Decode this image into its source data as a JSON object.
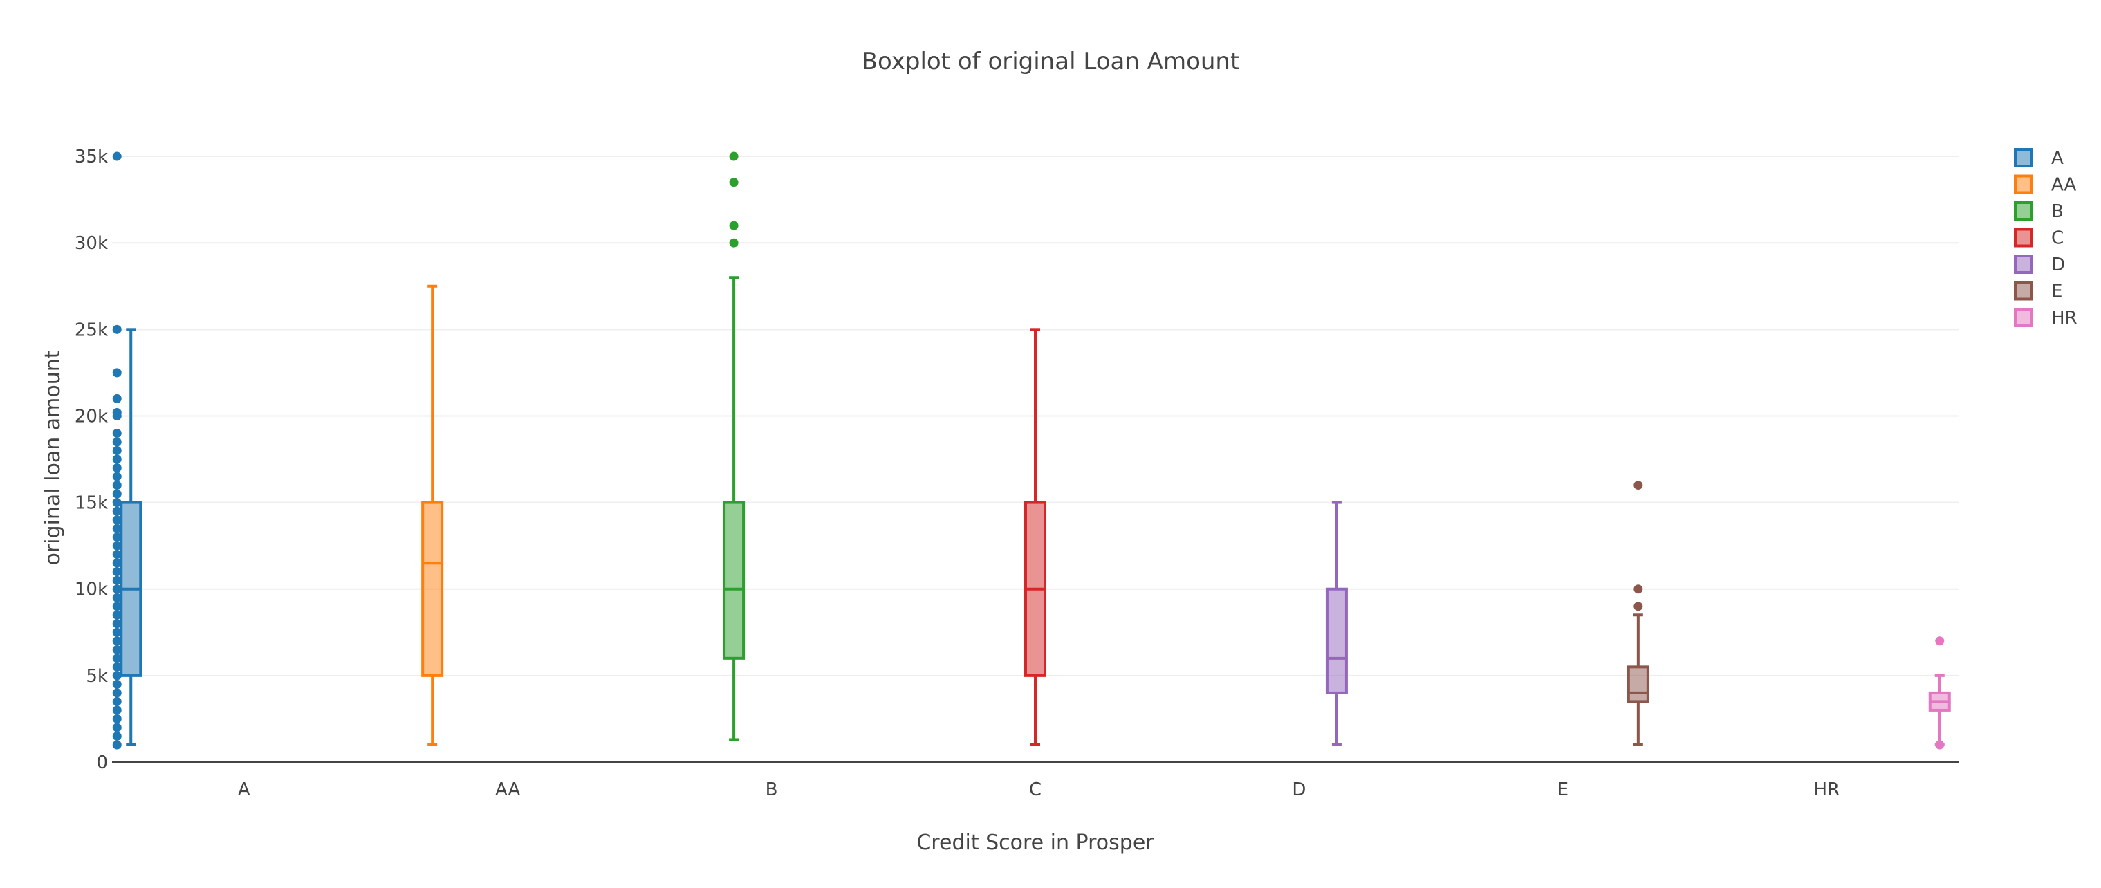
{
  "chart_data": {
    "type": "box",
    "title": "Boxplot of original Loan Amount",
    "xlabel": "Credit Score in Prosper",
    "ylabel": "original loan amount",
    "ylim": [
      0,
      37000
    ],
    "yticks": [
      0,
      5000,
      10000,
      15000,
      20000,
      25000,
      30000,
      35000
    ],
    "ytick_labels": [
      "0",
      "5k",
      "10k",
      "15k",
      "20k",
      "25k",
      "30k",
      "35k"
    ],
    "categories": [
      "A",
      "AA",
      "B",
      "C",
      "D",
      "E",
      "HR"
    ],
    "grid": true,
    "legend_position": "top-right",
    "series": [
      {
        "name": "A",
        "color": "#1f77b4",
        "min": 1000,
        "q1": 5000,
        "median": 10000,
        "q3": 15000,
        "max": 25000,
        "outliers": [
          35000,
          25000,
          22500,
          21000,
          20200,
          20000,
          19000,
          18500,
          18000,
          17500,
          17000,
          16500,
          16000,
          15500,
          15000,
          14500,
          14000,
          13500,
          13000,
          12500,
          12000,
          11500,
          11000,
          10500,
          10000,
          9500,
          9000,
          8500,
          8000,
          7500,
          7000,
          6500,
          6000,
          5500,
          5000,
          4500,
          4000,
          3500,
          3000,
          2500,
          2000,
          1500,
          1000
        ]
      },
      {
        "name": "AA",
        "color": "#ff7f0e",
        "min": 1000,
        "q1": 5000,
        "median": 11500,
        "q3": 15000,
        "max": 27500,
        "outliers": []
      },
      {
        "name": "B",
        "color": "#2ca02c",
        "min": 1300,
        "q1": 6000,
        "median": 10000,
        "q3": 15000,
        "max": 28000,
        "outliers": [
          35000,
          33500,
          31000,
          30000
        ]
      },
      {
        "name": "C",
        "color": "#d62728",
        "min": 1000,
        "q1": 5000,
        "median": 10000,
        "q3": 15000,
        "max": 25000,
        "outliers": []
      },
      {
        "name": "D",
        "color": "#9467bd",
        "min": 1000,
        "q1": 4000,
        "median": 6000,
        "q3": 10000,
        "max": 15000,
        "outliers": []
      },
      {
        "name": "E",
        "color": "#8c564b",
        "min": 1000,
        "q1": 3500,
        "median": 4000,
        "q3": 5500,
        "max": 8500,
        "outliers": [
          16000,
          10000,
          9000
        ]
      },
      {
        "name": "HR",
        "color": "#e377c2",
        "min": 1000,
        "q1": 3000,
        "median": 3500,
        "q3": 4000,
        "max": 5000,
        "outliers": [
          7000,
          1000
        ]
      }
    ]
  }
}
